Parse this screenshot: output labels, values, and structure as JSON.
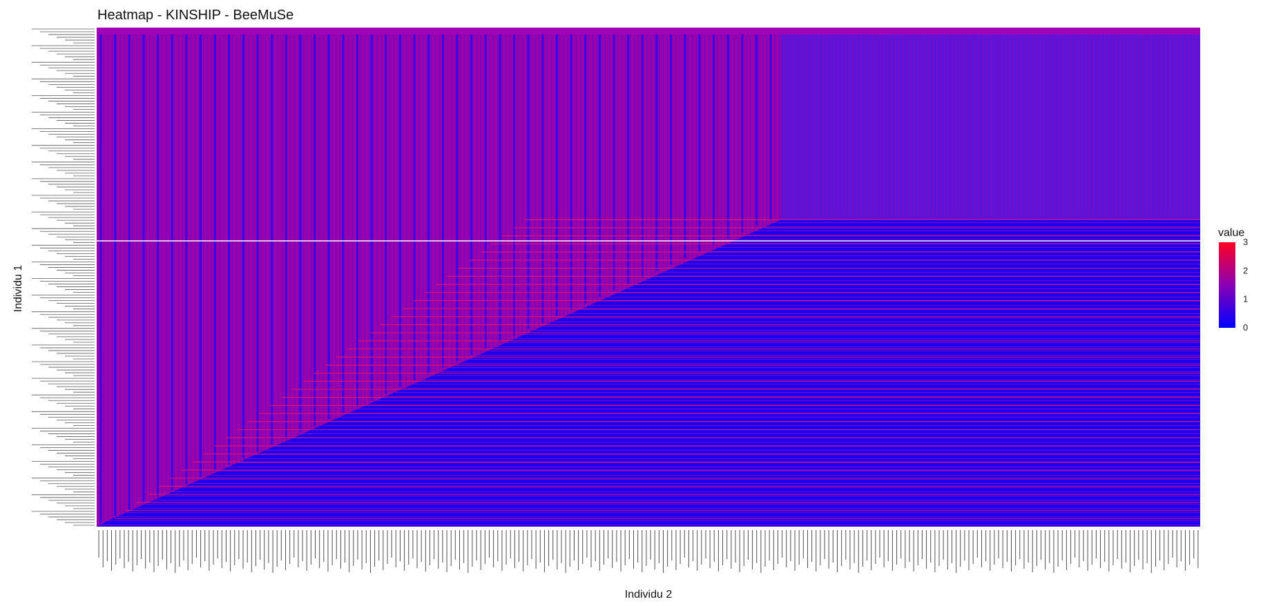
{
  "chart_data": {
    "type": "heatmap",
    "title": "Heatmap - KINSHIP - BeeMuSe",
    "xlabel": "Individu 2",
    "ylabel": "Individu 1",
    "legend": {
      "title": "value",
      "ticks": [
        "3",
        "2",
        "1",
        "0"
      ],
      "placement": "right",
      "colors": {
        "low": "#0000ff",
        "mid": "#7f00a0",
        "high": "#ff0000"
      }
    },
    "value_range": [
      0,
      3
    ],
    "regions": [
      {
        "name": "upper-left-triangle",
        "typical_value": 1.5
      },
      {
        "name": "lower-right-triangle",
        "typical_value": 0.3
      }
    ],
    "n_rows": 180,
    "n_cols": 260
  }
}
